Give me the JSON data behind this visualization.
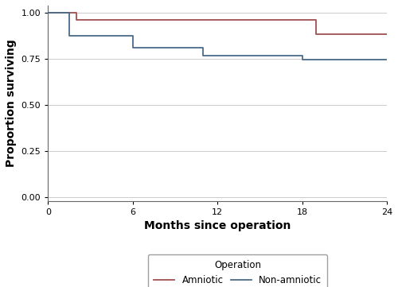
{
  "xlabel": "Months since operation",
  "ylabel": "Proportion surviving",
  "xlim": [
    0,
    24
  ],
  "ylim": [
    -0.02,
    1.04
  ],
  "yticks": [
    0.0,
    0.25,
    0.5,
    0.75,
    1.0
  ],
  "xticks": [
    0,
    6,
    12,
    18,
    24
  ],
  "legend_title": "Operation",
  "amniotic_color": "#9e5050",
  "non_amniotic_color": "#4a6a8a",
  "amniotic_label": "Amniotic",
  "non_amniotic_label": "Non-amniotic",
  "amniotic_x": [
    0,
    2,
    2,
    19,
    19,
    24
  ],
  "amniotic_y": [
    1.0,
    1.0,
    0.96,
    0.96,
    0.885,
    0.885
  ],
  "non_amniotic_x": [
    0,
    1.5,
    1.5,
    6,
    6,
    11,
    11,
    18,
    18,
    20,
    20,
    24
  ],
  "non_amniotic_y": [
    1.0,
    1.0,
    0.875,
    0.875,
    0.81,
    0.81,
    0.77,
    0.77,
    0.745,
    0.745,
    0.745,
    0.745
  ],
  "grid_color": "#cccccc",
  "background_color": "#ffffff",
  "linewidth": 1.3,
  "legend_box_color": "#ffffff",
  "legend_edge_color": "#888888",
  "tick_labelsize": 8,
  "axis_labelsize": 10,
  "legend_fontsize": 8.5,
  "legend_title_fontsize": 8.5
}
